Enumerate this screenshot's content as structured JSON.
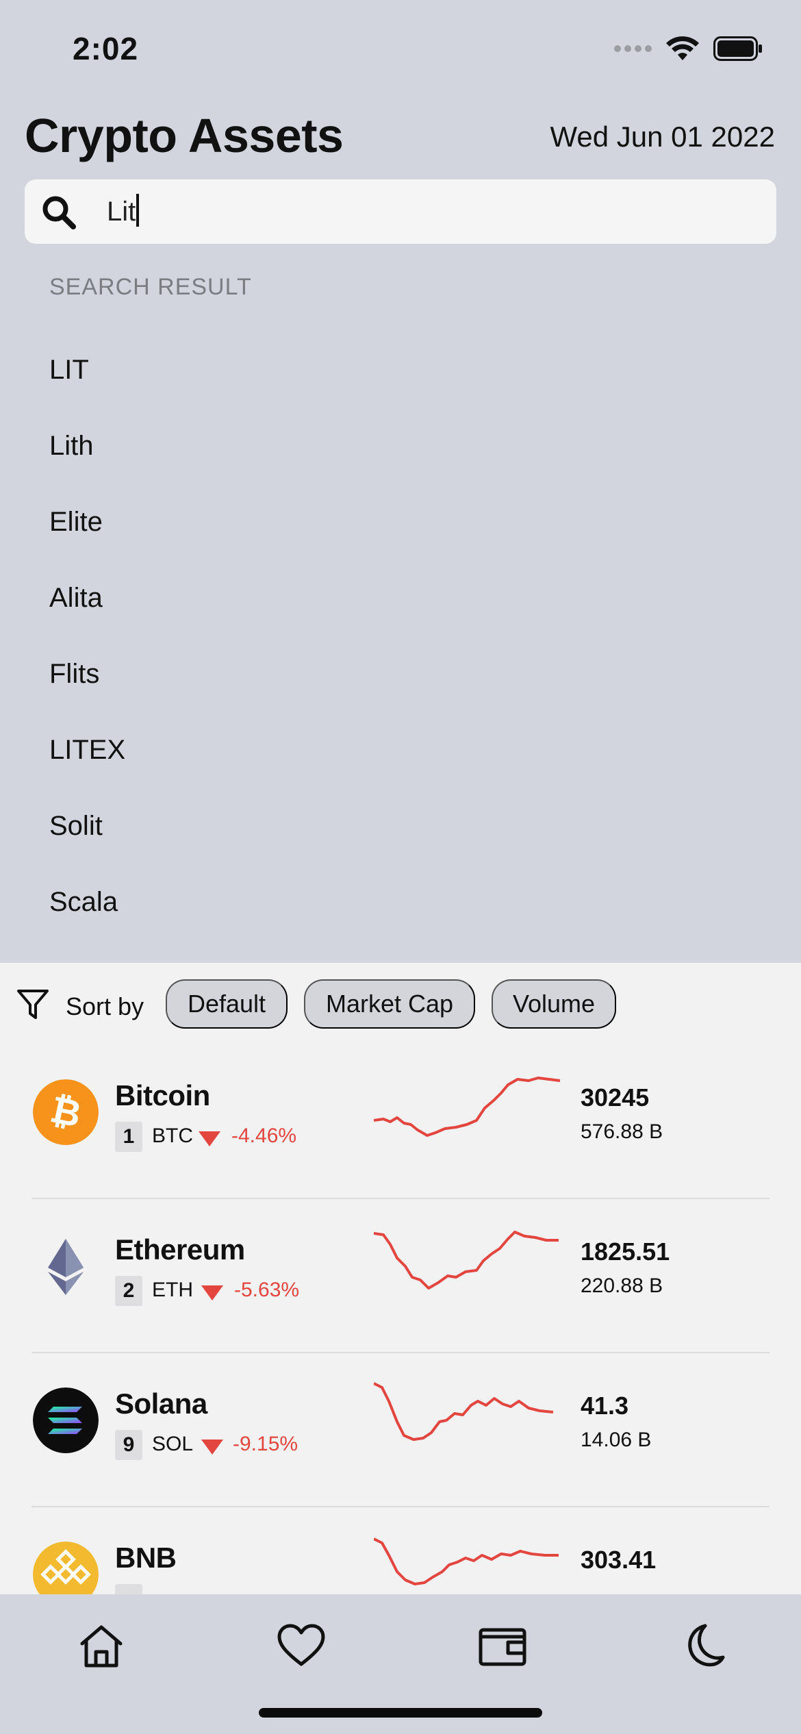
{
  "status_bar": {
    "time": "2:02"
  },
  "header": {
    "title": "Crypto Assets",
    "date": "Wed Jun 01 2022"
  },
  "search": {
    "value": "Lit",
    "placeholder": ""
  },
  "results": {
    "heading": "SEARCH RESULT",
    "items": [
      "LIT",
      "Lith",
      "Elite",
      "Alita",
      "Flits",
      "LITEX",
      "Solit",
      "Scala"
    ]
  },
  "sort": {
    "label": "Sort by",
    "options": [
      "Default",
      "Market Cap",
      "Volume"
    ]
  },
  "colors": {
    "down": "#e3453f",
    "overlay": "#d2d5dd",
    "chip": "#d3d5db"
  },
  "assets": [
    {
      "name": "Bitcoin",
      "rank": "1",
      "symbol": "BTC",
      "change": "-4.46%",
      "price": "30245",
      "market_cap": "576.88 B",
      "logo_icon": "bitcoin-icon"
    },
    {
      "name": "Ethereum",
      "rank": "2",
      "symbol": "ETH",
      "change": "-5.63%",
      "price": "1825.51",
      "market_cap": "220.88 B",
      "logo_icon": "ethereum-icon"
    },
    {
      "name": "Solana",
      "rank": "9",
      "symbol": "SOL",
      "change": "-9.15%",
      "price": "41.3",
      "market_cap": "14.06 B",
      "logo_icon": "solana-icon"
    },
    {
      "name": "BNB",
      "rank": "",
      "symbol": "",
      "change": "",
      "price": "303.41",
      "market_cap": "",
      "logo_icon": "bnb-icon"
    }
  ],
  "tabs": [
    "home-icon",
    "heart-icon",
    "wallet-icon",
    "moon-icon"
  ]
}
